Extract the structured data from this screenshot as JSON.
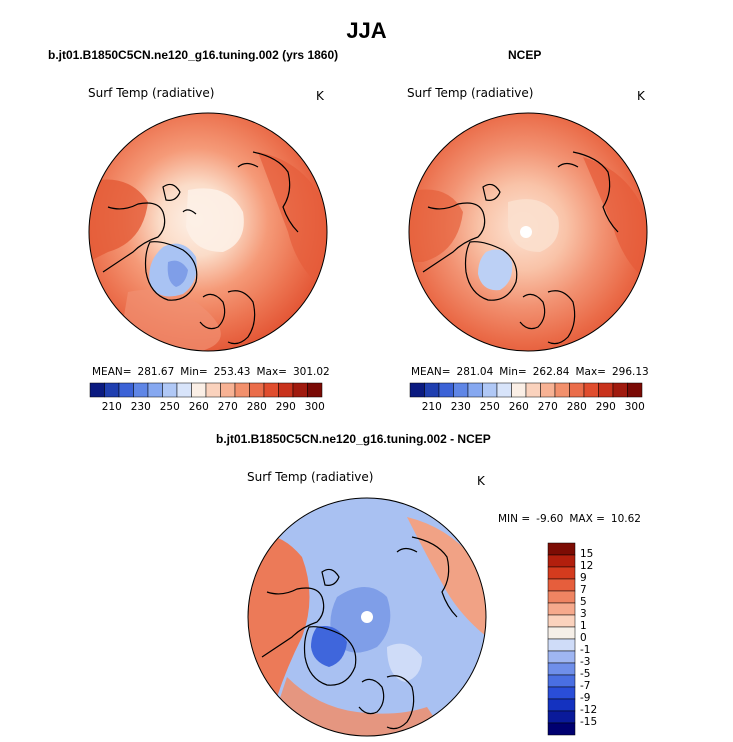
{
  "title": "JJA",
  "panels": [
    {
      "id": "model",
      "title": "b.jt01.B1850C5CN.ne120_g16.tuning.002 (yrs 1860)",
      "variable": "Surf Temp (radiative)",
      "units": "K",
      "stats": {
        "mean_label": "MEAN=",
        "mean": "281.67",
        "min_label": "Min=",
        "min": "253.43",
        "max_label": "Max=",
        "max": "301.02"
      },
      "colorbar_ticks": [
        "210",
        "230",
        "250",
        "260",
        "270",
        "280",
        "290",
        "300"
      ]
    },
    {
      "id": "ncep",
      "title": "NCEP",
      "variable": "Surf Temp (radiative)",
      "units": "K",
      "stats": {
        "mean_label": "MEAN=",
        "mean": "281.04",
        "min_label": "Min=",
        "min": "262.84",
        "max_label": "Max=",
        "max": "296.13"
      },
      "colorbar_ticks": [
        "210",
        "230",
        "250",
        "260",
        "270",
        "280",
        "290",
        "300"
      ]
    },
    {
      "id": "diff",
      "title": "b.jt01.B1850C5CN.ne120_g16.tuning.002 - NCEP",
      "variable": "Surf Temp (radiative)",
      "units": "K",
      "minmax": {
        "min_label": "MIN =",
        "min": "-9.60",
        "max_label": "MAX =",
        "max": "10.62"
      },
      "colorbar_ticks": [
        "15",
        "12",
        "9",
        "7",
        "5",
        "3",
        "1",
        "0",
        "-1",
        "-3",
        "-5",
        "-7",
        "-9",
        "-12",
        "-15"
      ]
    }
  ],
  "chart_data": [
    {
      "type": "heatmap",
      "projection": "polar stereographic (North Pole)",
      "title": "b.jt01.B1850C5CN.ne120_g16.tuning.002 (yrs 1860)",
      "variable": "Surf Temp (radiative)",
      "units": "K",
      "mean": 281.67,
      "min": 253.43,
      "max": 301.02,
      "contour_levels": [
        210,
        220,
        230,
        240,
        250,
        255,
        260,
        265,
        270,
        275,
        280,
        285,
        290,
        295,
        300
      ],
      "colors": [
        "#0a1a80",
        "#1f3fb0",
        "#3b62d6",
        "#5f86e6",
        "#86a8f0",
        "#b0c8f6",
        "#d8e4fa",
        "#fbefe6",
        "#fad2bd",
        "#f7b294",
        "#f2906c",
        "#ea6d4a",
        "#e04d2e",
        "#c8321c",
        "#a01a0e",
        "#7a0a05"
      ]
    },
    {
      "type": "heatmap",
      "projection": "polar stereographic (North Pole)",
      "title": "NCEP",
      "variable": "Surf Temp (radiative)",
      "units": "K",
      "mean": 281.04,
      "min": 262.84,
      "max": 296.13,
      "contour_levels": [
        210,
        220,
        230,
        240,
        250,
        255,
        260,
        265,
        270,
        275,
        280,
        285,
        290,
        295,
        300
      ],
      "colors": [
        "#0a1a80",
        "#1f3fb0",
        "#3b62d6",
        "#5f86e6",
        "#86a8f0",
        "#b0c8f6",
        "#d8e4fa",
        "#fbefe6",
        "#fad2bd",
        "#f7b294",
        "#f2906c",
        "#ea6d4a",
        "#e04d2e",
        "#c8321c",
        "#a01a0e",
        "#7a0a05"
      ]
    },
    {
      "type": "heatmap",
      "projection": "polar stereographic (North Pole)",
      "title": "b.jt01.B1850C5CN.ne120_g16.tuning.002 - NCEP",
      "variable": "Surf Temp (radiative)",
      "units": "K",
      "min": -9.6,
      "max": 10.62,
      "contour_levels": [
        -15,
        -12,
        -9,
        -7,
        -5,
        -3,
        -1,
        0,
        1,
        3,
        5,
        7,
        9,
        12,
        15
      ],
      "colors": [
        "#000070",
        "#0a1a9a",
        "#1432c0",
        "#2a4ed8",
        "#4a6fe2",
        "#6f8fea",
        "#9fb6f2",
        "#cfdcf8",
        "#f6efe8",
        "#fbd2bd",
        "#f6a98c",
        "#ef8462",
        "#e65e3c",
        "#d43b1e",
        "#b21f0d",
        "#7c0c04"
      ]
    }
  ],
  "colors": {
    "ocean_warm": "#e86a48",
    "cold_outer": "#e2502f",
    "arctic_pale": "#fbe6d8",
    "greenland_blue": "#a9c3f3",
    "diff_blue": "#92b0f0",
    "diff_red": "#ec7a58"
  }
}
